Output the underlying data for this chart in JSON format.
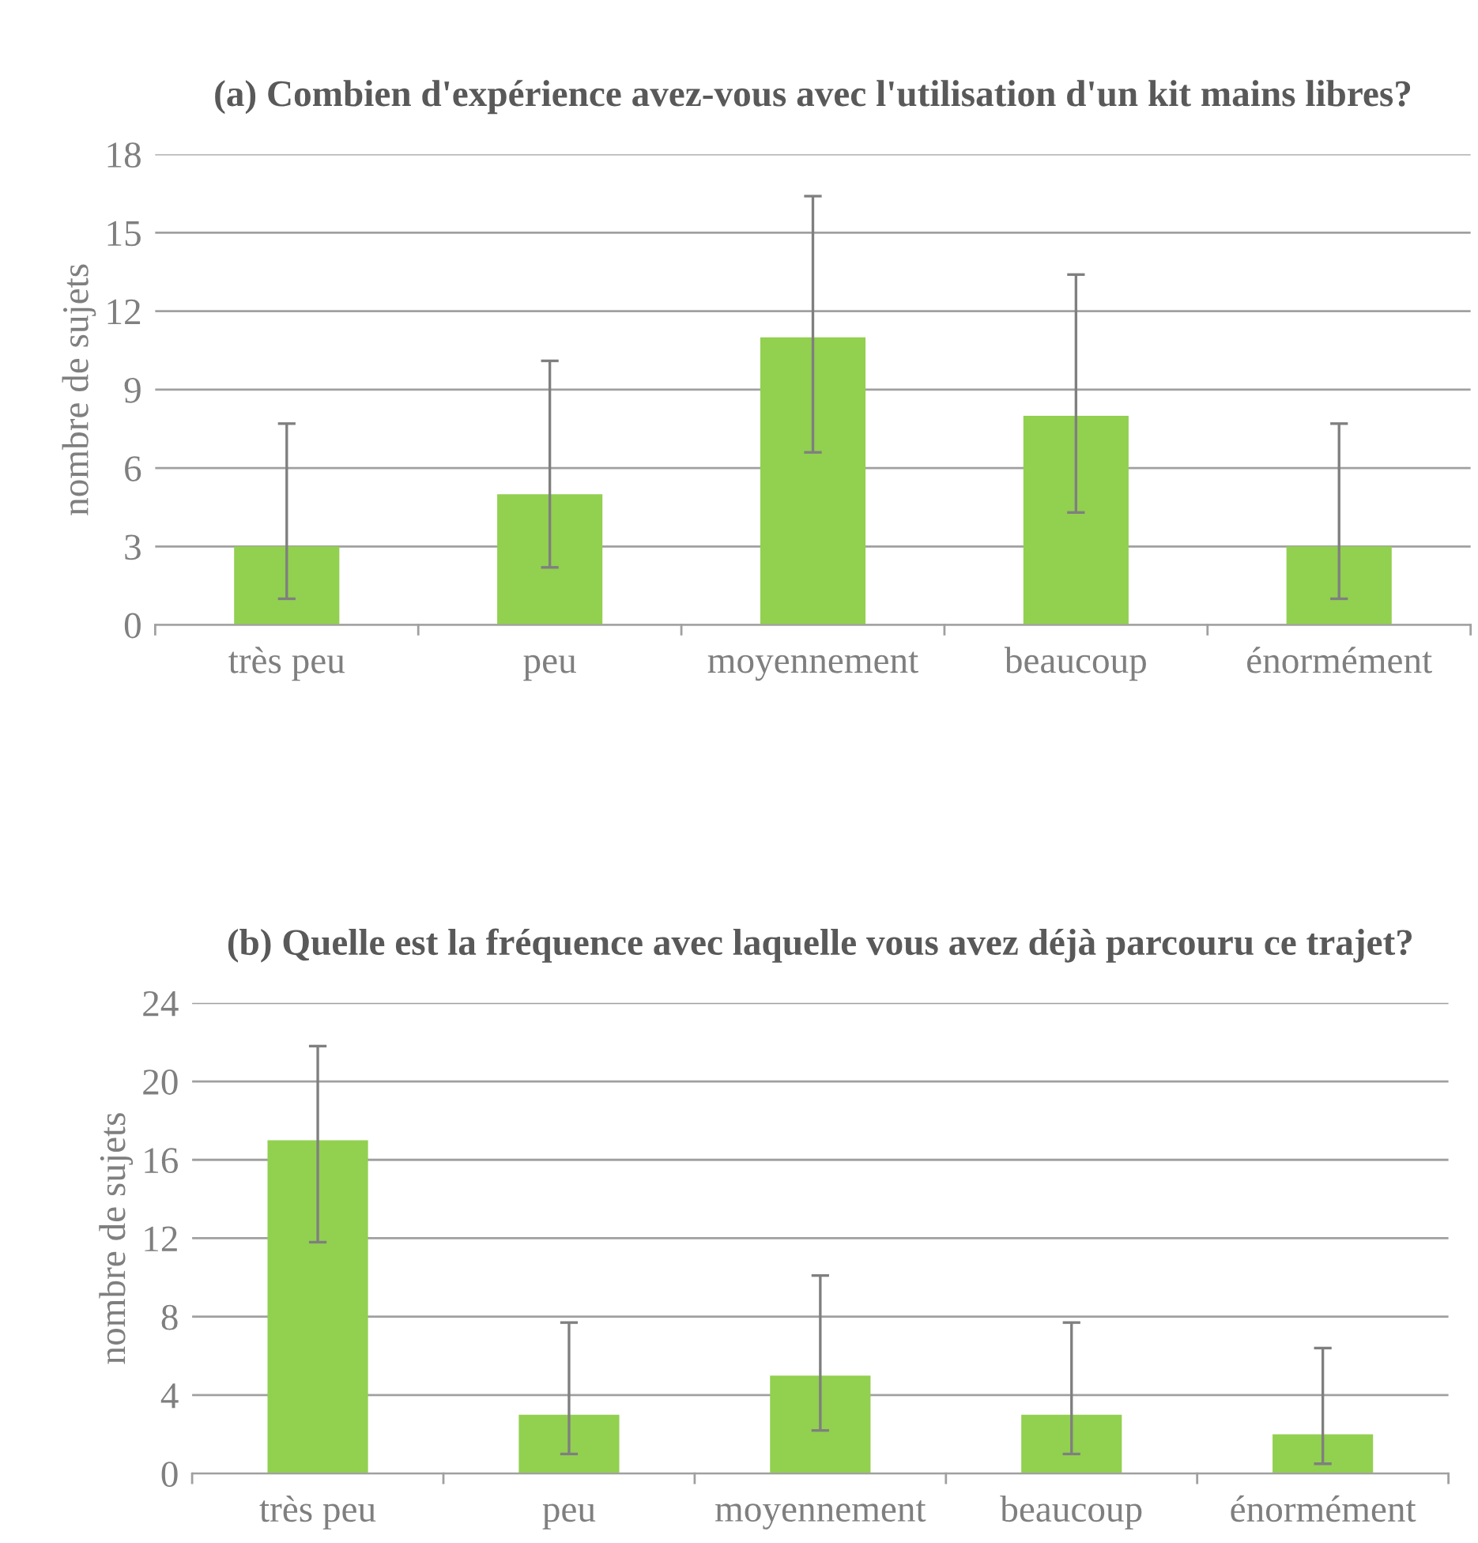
{
  "chart_data": [
    {
      "type": "bar",
      "title": "(a) Combien d'expérience avez-vous avec l'utilisation d'un kit mains libres?",
      "ylabel": "nombre de sujets",
      "categories": [
        "très peu",
        "peu",
        "moyennement",
        "beaucoup",
        "énormément"
      ],
      "values": [
        3,
        5,
        11,
        8,
        3
      ],
      "color": "#92d050",
      "errors": [
        [
          1.0,
          7.7
        ],
        [
          2.2,
          10.1
        ],
        [
          6.6,
          16.4
        ],
        [
          4.3,
          13.4
        ],
        [
          1.0,
          7.7
        ]
      ],
      "ylim": [
        0,
        18
      ],
      "yticks": [
        0,
        3,
        6,
        9,
        12,
        15,
        18
      ],
      "grid": "y",
      "legend": false
    },
    {
      "type": "bar",
      "title": "(b) Quelle est la fréquence avec laquelle vous avez déjà parcouru ce trajet?",
      "ylabel": "nombre de sujets",
      "categories": [
        "très peu",
        "peu",
        "moyennement",
        "beaucoup",
        "énormément"
      ],
      "values": [
        17,
        3,
        5,
        3,
        2
      ],
      "color": "#92d050",
      "errors": [
        [
          11.8,
          21.8
        ],
        [
          1.0,
          7.7
        ],
        [
          2.2,
          10.1
        ],
        [
          1.0,
          7.7
        ],
        [
          0.5,
          6.4
        ]
      ],
      "ylim": [
        0,
        24
      ],
      "yticks": [
        0,
        4,
        8,
        12,
        16,
        20,
        24
      ],
      "grid": "y",
      "legend": false
    }
  ]
}
